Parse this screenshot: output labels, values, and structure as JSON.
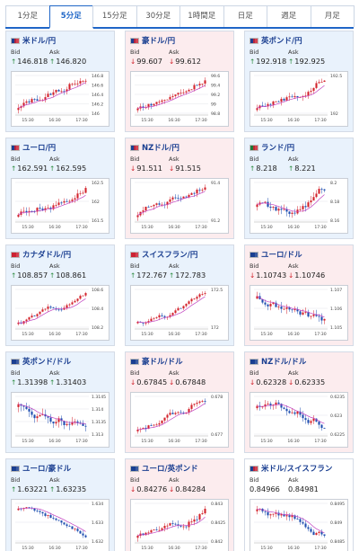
{
  "tabs": [
    {
      "label": "1分足",
      "active": false
    },
    {
      "label": "5分足",
      "active": true
    },
    {
      "label": "15分足",
      "active": false
    },
    {
      "label": "30分足",
      "active": false
    },
    {
      "label": "1時間足",
      "active": false
    },
    {
      "label": "日足",
      "active": false
    },
    {
      "label": "週足",
      "active": false
    },
    {
      "label": "月足",
      "active": false
    }
  ],
  "labels": {
    "bid": "Bid",
    "ask": "Ask"
  },
  "colors": {
    "up_card": "#e9f2fc",
    "down_card": "#fcecee",
    "candle_up": "#d3232c",
    "candle_down": "#1f4fb0",
    "moving_average": "#c040c0",
    "arrow_up": "#2a8a3e",
    "arrow_down": "#d0212a"
  },
  "pairs": [
    {
      "name": "米ドル/円",
      "flags": [
        "#1b3f91",
        "#cc2233"
      ],
      "direction": "up",
      "bid": "146.818",
      "ask": "146.820",
      "chart_data": {
        "type": "candlestick",
        "trend": "up",
        "x_ticks": [
          "15:30",
          "16:30",
          "17:30"
        ],
        "y_ticks": [
          "146.8",
          "146.6",
          "146.4",
          "146.2",
          "146"
        ]
      }
    },
    {
      "name": "豪ドル/円",
      "flags": [
        "#1b3f91",
        "#cc2233"
      ],
      "direction": "down",
      "bid": "99.607",
      "ask": "99.612",
      "chart_data": {
        "type": "candlestick",
        "trend": "up",
        "x_ticks": [
          "15:30",
          "16:30",
          "17:30"
        ],
        "y_ticks": [
          "99.6",
          "99.4",
          "99.2",
          "99",
          "98.8"
        ]
      }
    },
    {
      "name": "英ポンド/円",
      "flags": [
        "#1b3f91",
        "#cc2233"
      ],
      "direction": "up",
      "bid": "192.918",
      "ask": "192.925",
      "chart_data": {
        "type": "candlestick",
        "trend": "up",
        "x_ticks": [
          "15:30",
          "16:30",
          "17:30"
        ],
        "y_ticks": [
          "192.5",
          "192"
        ]
      }
    },
    {
      "name": "ユーロ/円",
      "flags": [
        "#1b3f91",
        "#cc2233"
      ],
      "direction": "up",
      "bid": "162.591",
      "ask": "162.595",
      "chart_data": {
        "type": "candlestick",
        "trend": "up",
        "x_ticks": [
          "15:30",
          "16:30",
          "17:30"
        ],
        "y_ticks": [
          "162.5",
          "162",
          "161.5"
        ]
      }
    },
    {
      "name": "NZドル/円",
      "flags": [
        "#1b3f91",
        "#cc2233"
      ],
      "direction": "down",
      "bid": "91.511",
      "ask": "91.515",
      "chart_data": {
        "type": "candlestick",
        "trend": "up",
        "x_ticks": [
          "15:30",
          "16:30",
          "17:30"
        ],
        "y_ticks": [
          "91.4",
          "91.2"
        ]
      }
    },
    {
      "name": "ランド/円",
      "flags": [
        "#1e7a3a",
        "#cc2233"
      ],
      "direction": "up",
      "bid": "8.218",
      "ask": "8.221",
      "chart_data": {
        "type": "candlestick",
        "trend": "mixed",
        "x_ticks": [
          "15:30",
          "16:30",
          "17:30"
        ],
        "y_ticks": [
          "8.2",
          "8.18",
          "8.16"
        ]
      }
    },
    {
      "name": "カナダドル/円",
      "flags": [
        "#cc2233",
        "#cc2233"
      ],
      "direction": "up",
      "bid": "108.857",
      "ask": "108.861",
      "chart_data": {
        "type": "candlestick",
        "trend": "up",
        "x_ticks": [
          "15:30",
          "16:30",
          "17:30"
        ],
        "y_ticks": [
          "108.6",
          "108.4",
          "108.2"
        ]
      }
    },
    {
      "name": "スイスフラン/円",
      "flags": [
        "#cc2233",
        "#cc2233"
      ],
      "direction": "up",
      "bid": "172.767",
      "ask": "172.783",
      "chart_data": {
        "type": "candlestick",
        "trend": "up",
        "x_ticks": [
          "15:30",
          "16:30",
          "17:30"
        ],
        "y_ticks": [
          "172.5",
          "172"
        ]
      }
    },
    {
      "name": "ユーロ/ドル",
      "flags": [
        "#1b3f91",
        "#1b3f91"
      ],
      "direction": "down",
      "bid": "1.10743",
      "ask": "1.10746",
      "chart_data": {
        "type": "candlestick",
        "trend": "down",
        "x_ticks": [
          "15:30",
          "16:30",
          "17:30"
        ],
        "y_ticks": [
          "1.107",
          "1.106",
          "1.105"
        ]
      }
    },
    {
      "name": "英ポンド/ドル",
      "flags": [
        "#1b3f91",
        "#1b3f91"
      ],
      "direction": "up",
      "bid": "1.31398",
      "ask": "1.31403",
      "chart_data": {
        "type": "candlestick",
        "trend": "flat",
        "x_ticks": [
          "15:30",
          "16:30",
          "17:30"
        ],
        "y_ticks": [
          "1.3145",
          "1.314",
          "1.3135",
          "1.313"
        ]
      }
    },
    {
      "name": "豪ドル/ドル",
      "flags": [
        "#1b3f91",
        "#1b3f91"
      ],
      "direction": "down",
      "bid": "0.67845",
      "ask": "0.67848",
      "chart_data": {
        "type": "candlestick",
        "trend": "up",
        "x_ticks": [
          "15:30",
          "16:30",
          "17:30"
        ],
        "y_ticks": [
          "0.678",
          "0.677"
        ]
      }
    },
    {
      "name": "NZドル/ドル",
      "flags": [
        "#1b3f91",
        "#1b3f91"
      ],
      "direction": "down",
      "bid": "0.62328",
      "ask": "0.62335",
      "chart_data": {
        "type": "candlestick",
        "trend": "down",
        "x_ticks": [
          "15:30",
          "16:30",
          "17:30"
        ],
        "y_ticks": [
          "0.6235",
          "0.623",
          "0.6225"
        ]
      }
    },
    {
      "name": "ユーロ/豪ドル",
      "flags": [
        "#1b3f91",
        "#1b3f91"
      ],
      "direction": "up",
      "bid": "1.63221",
      "ask": "1.63235",
      "chart_data": {
        "type": "candlestick",
        "trend": "down",
        "x_ticks": [
          "15:30",
          "16:30",
          "17:30"
        ],
        "y_ticks": [
          "1.634",
          "1.633",
          "1.632"
        ]
      }
    },
    {
      "name": "ユーロ/英ポンド",
      "flags": [
        "#1b3f91",
        "#1b3f91"
      ],
      "direction": "down",
      "bid": "0.84276",
      "ask": "0.84284",
      "chart_data": {
        "type": "candlestick",
        "trend": "up",
        "x_ticks": [
          "15:30",
          "16:30",
          "17:30"
        ],
        "y_ticks": [
          "0.843",
          "0.8425",
          "0.842"
        ]
      }
    },
    {
      "name": "米ドル/スイスフラン",
      "flags": [
        "#1b3f91",
        "#cc2233"
      ],
      "direction": "flat",
      "bid": "0.84966",
      "ask": "0.84981",
      "chart_data": {
        "type": "candlestick",
        "trend": "down",
        "x_ticks": [
          "15:30",
          "16:30",
          "17:30"
        ],
        "y_ticks": [
          "0.8495",
          "0.849",
          "0.8485"
        ]
      }
    }
  ]
}
